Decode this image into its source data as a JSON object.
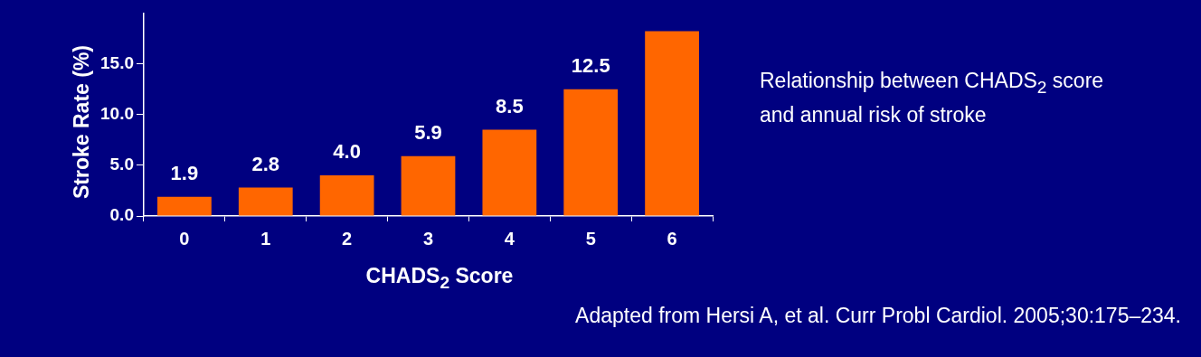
{
  "chart_data": {
    "type": "bar",
    "categories": [
      "0",
      "1",
      "2",
      "3",
      "4",
      "5",
      "6"
    ],
    "values": [
      1.9,
      2.8,
      4.0,
      5.9,
      8.5,
      12.5,
      18.2
    ],
    "value_labels": [
      "1.9",
      "2.8",
      "4.0",
      "5.9",
      "8.5",
      "12.5",
      null
    ],
    "color": "#ff6600",
    "ylim": [
      0,
      20
    ],
    "yticks": [
      {
        "value": 0,
        "label": "0.0"
      },
      {
        "value": 5,
        "label": "5.0"
      },
      {
        "value": 10,
        "label": "10.0"
      },
      {
        "value": 15,
        "label": "15.0"
      }
    ],
    "xlabel": "CHADS$_{2}$ Score",
    "ylabel": "Stroke Rate (%)",
    "annotations": [
      "Relationship between CHADS$_{2}$ score and annual risk of stroke",
      "Adapted from Hersi A, et al. Curr Probl Cardiol. 2005;30:175–234."
    ]
  }
}
